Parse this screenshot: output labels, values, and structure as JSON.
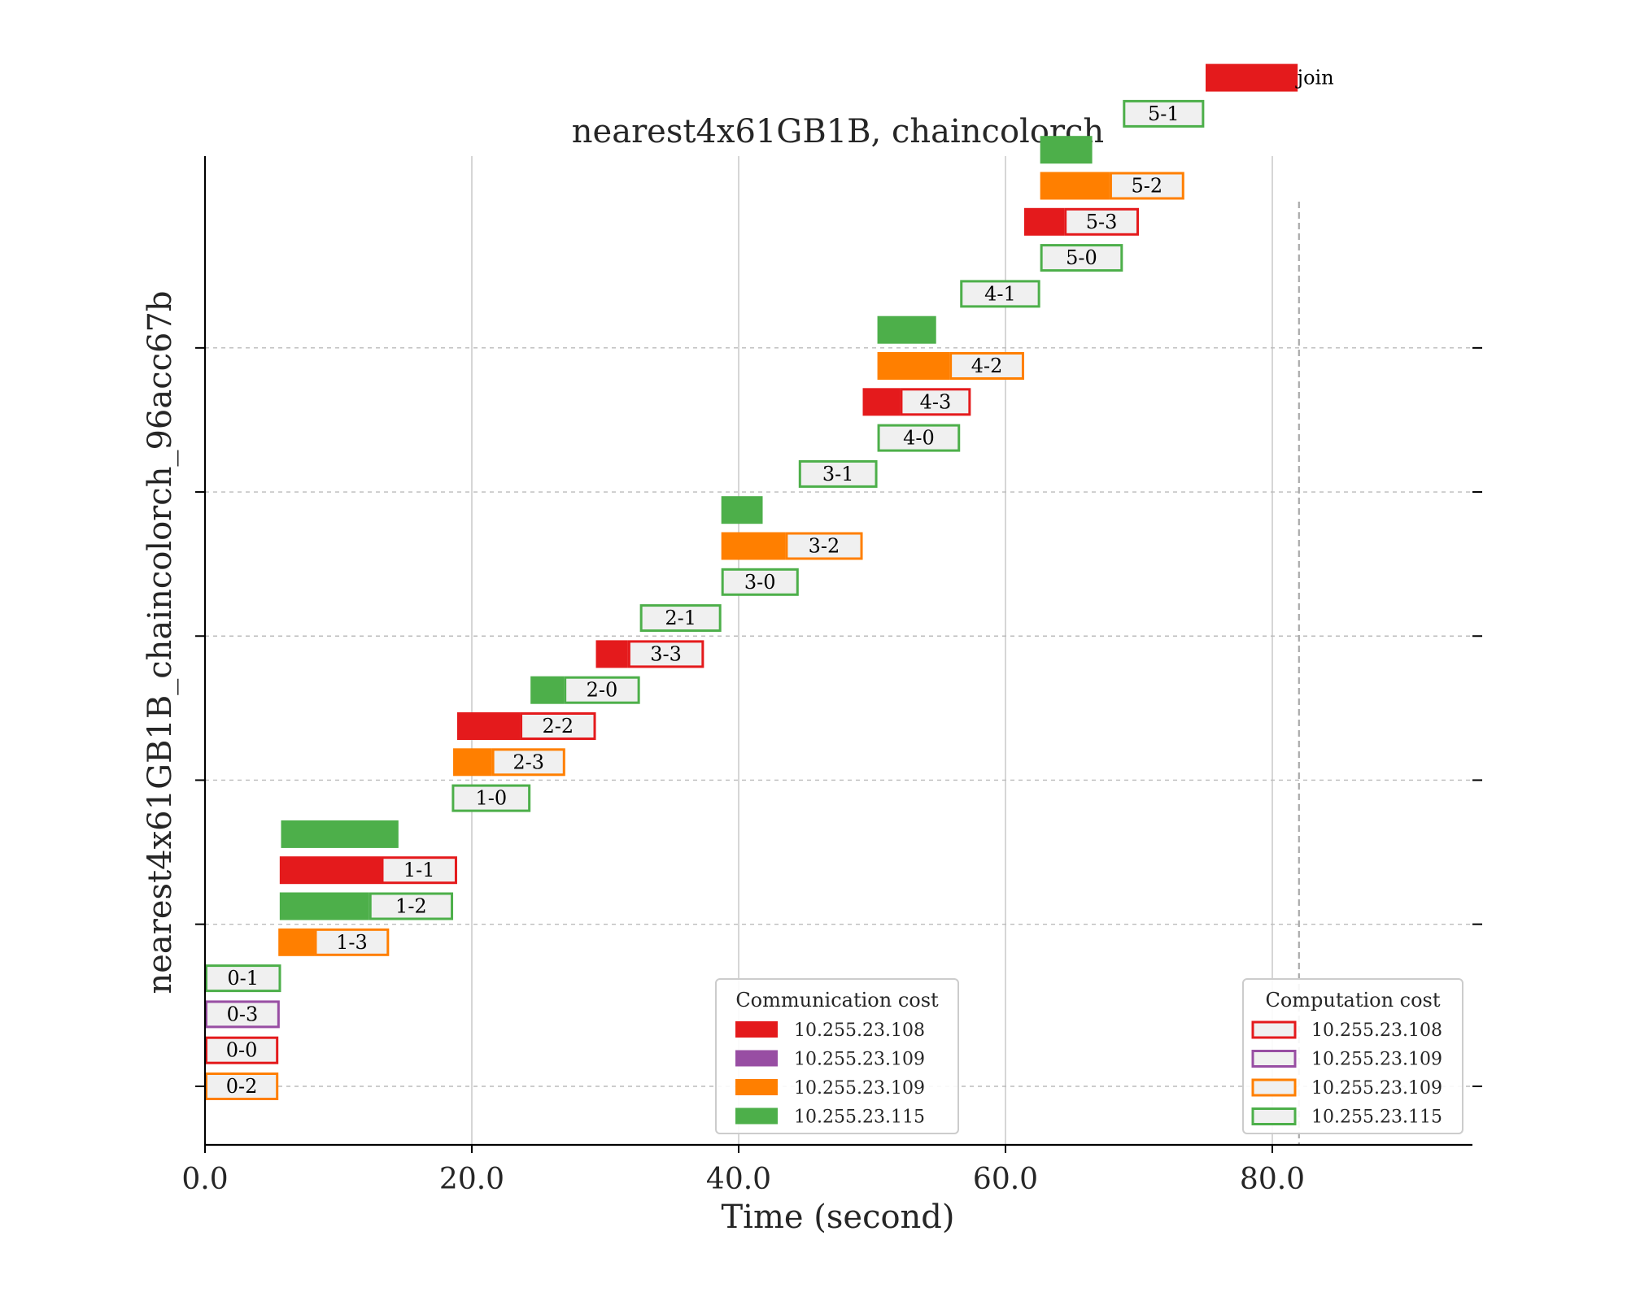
{
  "chart_data": {
    "type": "gantt",
    "title": "nearest4x61GB1B, chaincolorch",
    "xlabel": "Time (second)",
    "ylabel": "nearest4x61GB1B_chaincolorch_96acc67b",
    "xlim": [
      0,
      95
    ],
    "xticks": [
      0,
      20,
      40,
      60,
      80
    ],
    "xtick_labels": [
      "0.0",
      "20.0",
      "40.0",
      "60.0",
      "80.0"
    ],
    "join_time": 82.0,
    "legends": [
      {
        "title": "Communication cost",
        "style": "filled",
        "entries": [
          {
            "label": "10.255.23.108",
            "color": "#e41a1c"
          },
          {
            "label": "10.255.23.109",
            "color": "#984ea3"
          },
          {
            "label": "10.255.23.109",
            "color": "#ff7f00"
          },
          {
            "label": "10.255.23.115",
            "color": "#4daf4a"
          }
        ]
      },
      {
        "title": "Computation cost",
        "style": "outline",
        "entries": [
          {
            "label": "10.255.23.108",
            "color": "#e41a1c"
          },
          {
            "label": "10.255.23.109",
            "color": "#984ea3"
          },
          {
            "label": "10.255.23.109",
            "color": "#ff7f00"
          },
          {
            "label": "10.255.23.115",
            "color": "#4daf4a"
          }
        ]
      }
    ],
    "tasks": [
      {
        "label": "0-2",
        "color": "#ff7f00",
        "comm": [
          0.0,
          0.0
        ],
        "comp": [
          0.0,
          5.5
        ]
      },
      {
        "label": "0-0",
        "color": "#e41a1c",
        "comm": [
          0.0,
          0.0
        ],
        "comp": [
          0.0,
          5.5
        ]
      },
      {
        "label": "0-3",
        "color": "#984ea3",
        "comm": [
          0.0,
          0.0
        ],
        "comp": [
          0.0,
          5.6
        ]
      },
      {
        "label": "0-1",
        "color": "#4daf4a",
        "comm": [
          0.0,
          0.0
        ],
        "comp": [
          0.0,
          5.7
        ]
      },
      {
        "label": "1-3",
        "color": "#ff7f00",
        "comm": [
          5.5,
          8.2
        ],
        "comp": [
          8.2,
          13.8
        ]
      },
      {
        "label": "1-2",
        "color": "#4daf4a",
        "comm": [
          5.6,
          12.3
        ],
        "comp": [
          12.3,
          18.6
        ]
      },
      {
        "label": "1-1",
        "color": "#e41a1c",
        "comm": [
          5.6,
          13.2
        ],
        "comp": [
          13.2,
          18.9
        ]
      },
      {
        "label": "",
        "color": "#4daf4a",
        "comm": [
          5.7,
          14.5
        ],
        "comp": null
      },
      {
        "label": "1-0",
        "color": "#4daf4a",
        "comm": [
          18.5,
          18.5
        ],
        "comp": [
          18.5,
          24.4
        ]
      },
      {
        "label": "2-3",
        "color": "#ff7f00",
        "comm": [
          18.6,
          21.5
        ],
        "comp": [
          21.5,
          27.0
        ]
      },
      {
        "label": "2-2",
        "color": "#e41a1c",
        "comm": [
          18.9,
          23.6
        ],
        "comp": [
          23.6,
          29.3
        ]
      },
      {
        "label": "2-0",
        "color": "#4daf4a",
        "comm": [
          24.4,
          26.9
        ],
        "comp": [
          26.9,
          32.6
        ]
      },
      {
        "label": "3-3",
        "color": "#e41a1c",
        "comm": [
          29.3,
          31.7
        ],
        "comp": [
          31.7,
          37.4
        ]
      },
      {
        "label": "2-1",
        "color": "#4daf4a",
        "comm": [
          32.6,
          32.6
        ],
        "comp": [
          32.6,
          38.7
        ]
      },
      {
        "label": "3-0",
        "color": "#4daf4a",
        "comm": [
          38.7,
          38.7
        ],
        "comp": [
          38.7,
          44.5
        ]
      },
      {
        "label": "3-2",
        "color": "#ff7f00",
        "comm": [
          38.7,
          43.5
        ],
        "comp": [
          43.5,
          49.3
        ]
      },
      {
        "label": "",
        "color": "#4daf4a",
        "comm": [
          38.7,
          41.8
        ],
        "comp": null
      },
      {
        "label": "3-1",
        "color": "#4daf4a",
        "comm": [
          44.5,
          44.5
        ],
        "comp": [
          44.5,
          50.4
        ]
      },
      {
        "label": "4-0",
        "color": "#4daf4a",
        "comm": [
          50.4,
          50.4
        ],
        "comp": [
          50.4,
          56.6
        ]
      },
      {
        "label": "4-3",
        "color": "#e41a1c",
        "comm": [
          49.3,
          52.1
        ],
        "comp": [
          52.1,
          57.4
        ]
      },
      {
        "label": "4-2",
        "color": "#ff7f00",
        "comm": [
          50.4,
          55.8
        ],
        "comp": [
          55.8,
          61.4
        ]
      },
      {
        "label": "",
        "color": "#4daf4a",
        "comm": [
          50.4,
          54.8
        ],
        "comp": null
      },
      {
        "label": "4-1",
        "color": "#4daf4a",
        "comm": [
          56.6,
          56.6
        ],
        "comp": [
          56.6,
          62.6
        ]
      },
      {
        "label": "5-0",
        "color": "#4daf4a",
        "comm": [
          62.6,
          62.6
        ],
        "comp": [
          62.6,
          68.8
        ]
      },
      {
        "label": "5-3",
        "color": "#e41a1c",
        "comm": [
          61.4,
          64.4
        ],
        "comp": [
          64.4,
          70.0
        ]
      },
      {
        "label": "5-2",
        "color": "#ff7f00",
        "comm": [
          62.6,
          67.8
        ],
        "comp": [
          67.8,
          73.4
        ]
      },
      {
        "label": "",
        "color": "#4daf4a",
        "comm": [
          62.6,
          66.5
        ],
        "comp": null
      },
      {
        "label": "5-1",
        "color": "#4daf4a",
        "comm": [
          68.8,
          68.8
        ],
        "comp": [
          68.8,
          74.9
        ]
      },
      {
        "label": "join",
        "color": "#e41a1c",
        "comm": [
          75.0,
          81.9
        ],
        "comp": null
      }
    ]
  }
}
